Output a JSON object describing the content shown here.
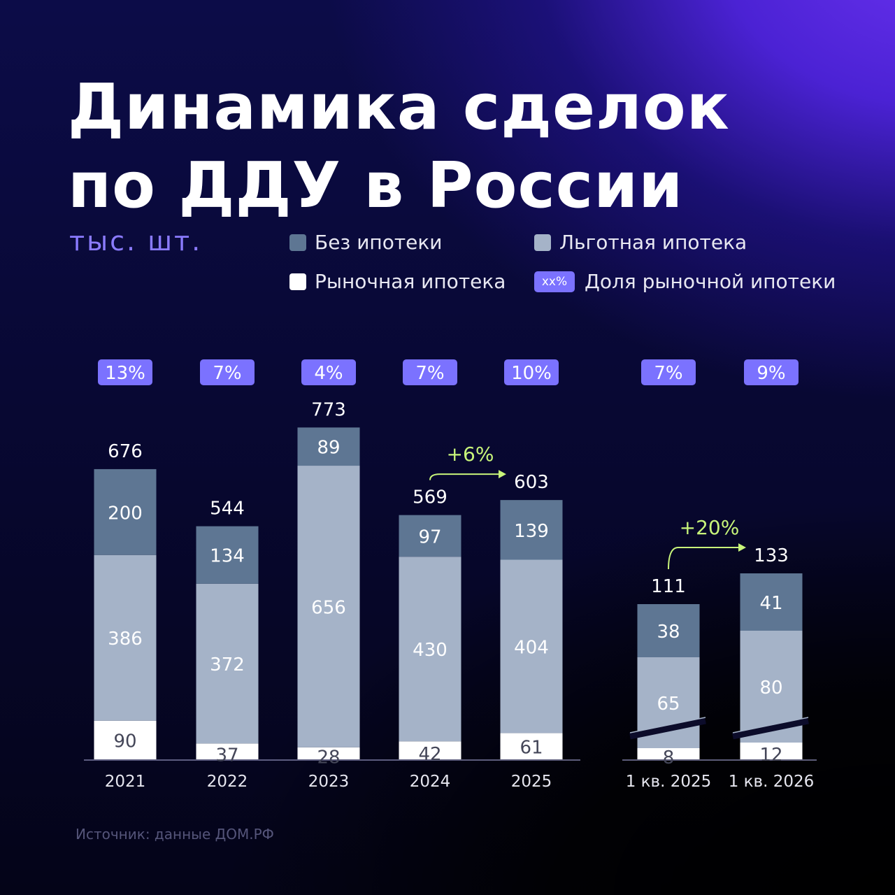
{
  "title_line1": "Динамика сделок",
  "title_line2": "по ДДУ в России",
  "unit": "тыс. шт.",
  "legend": {
    "no_mortgage": "Без ипотеки",
    "preferential": "Льготная ипотека",
    "market": "Рыночная ипотека",
    "share_marker": "xx%",
    "share": "Доля рыночной ипотеки"
  },
  "colors": {
    "no_mortgage": "#5e7693",
    "preferential": "#a5b3c8",
    "market": "#ffffff",
    "share_pill": "#7b72ff",
    "growth": "#c8f57a",
    "unit": "#8b7bff"
  },
  "source": "Источник: данные ДОМ.РФ",
  "chart_data": {
    "type": "bar",
    "stacked": true,
    "categories": [
      "2021",
      "2022",
      "2023",
      "2024",
      "2025",
      "1 кв. 2025",
      "1 кв. 2026"
    ],
    "series": [
      {
        "name": "Рыночная ипотека",
        "values": [
          90,
          37,
          28,
          42,
          61,
          8,
          12
        ]
      },
      {
        "name": "Льготная ипотека",
        "values": [
          386,
          372,
          656,
          430,
          404,
          65,
          80
        ]
      },
      {
        "name": "Без ипотеки",
        "values": [
          200,
          134,
          89,
          97,
          139,
          38,
          41
        ]
      }
    ],
    "totals": [
      676,
      544,
      773,
      569,
      603,
      111,
      133
    ],
    "market_share": [
      "13%",
      "7%",
      "4%",
      "7%",
      "10%",
      "7%",
      "9%"
    ],
    "growth": [
      {
        "from": "2024",
        "to": "2025",
        "label": "+6%"
      },
      {
        "from": "1 кв. 2025",
        "to": "1 кв. 2026",
        "label": "+20%"
      }
    ],
    "axis_break_on": [
      "1 кв. 2025",
      "1 кв. 2026"
    ],
    "grid": false
  }
}
